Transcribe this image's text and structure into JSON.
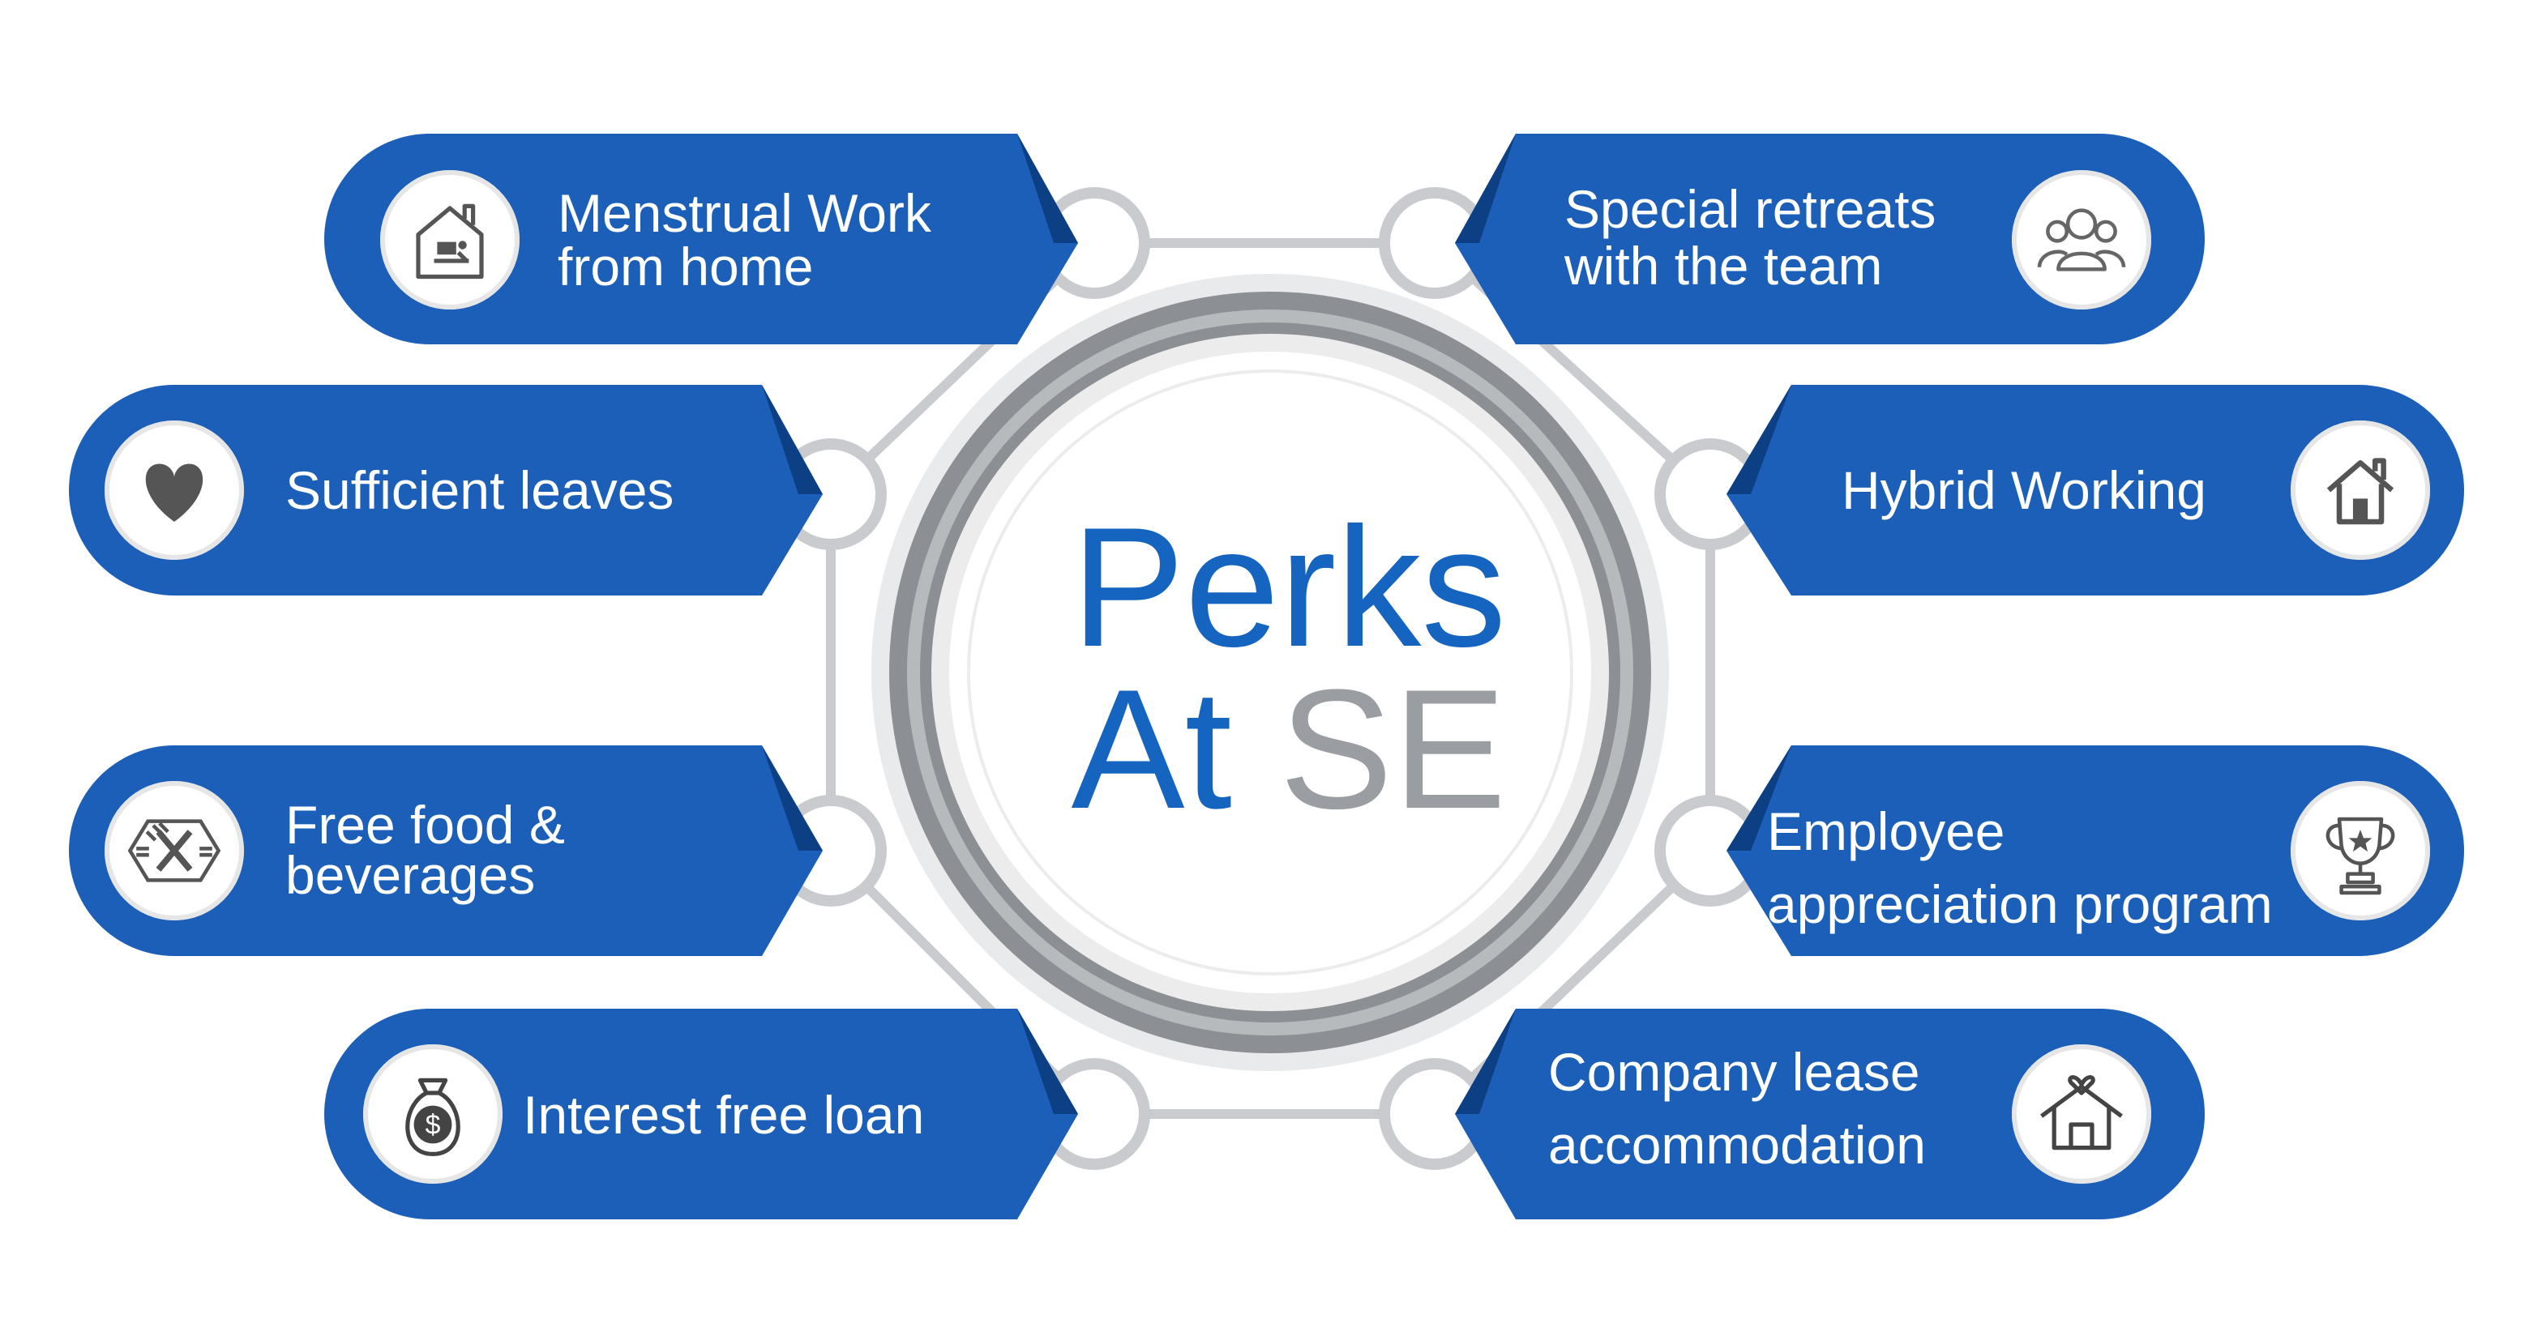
{
  "title": {
    "line1": "Perks",
    "line2_a": "At",
    "line2_b": "SE"
  },
  "colors": {
    "pill": "#1b5fb8",
    "pill_shadow": "#0d3f85",
    "ring_dark": "#8c8f94",
    "ring_light": "#c9cbce",
    "title_blue": "#1565c0",
    "title_gray": "#9a9da2"
  },
  "perks": [
    {
      "id": "menstrual",
      "lines": [
        "Menstrual Work",
        "from home"
      ],
      "icon": "house-person-icon"
    },
    {
      "id": "retreats",
      "lines": [
        "Special retreats",
        "with the team"
      ],
      "icon": "team-icon"
    },
    {
      "id": "leaves",
      "lines": [
        "Sufficient leaves"
      ],
      "icon": "heart-icon"
    },
    {
      "id": "hybrid",
      "lines": [
        "Hybrid Working"
      ],
      "icon": "home-icon"
    },
    {
      "id": "food",
      "lines": [
        "Free food &",
        "beverages"
      ],
      "icon": "fork-knife-icon"
    },
    {
      "id": "appreciation",
      "lines": [
        "Employee",
        "appreciation program"
      ],
      "icon": "trophy-icon"
    },
    {
      "id": "loan",
      "lines": [
        "Interest free loan"
      ],
      "icon": "money-bag-icon"
    },
    {
      "id": "lease",
      "lines": [
        "Company lease",
        "accommodation"
      ],
      "icon": "house-heart-icon"
    }
  ]
}
